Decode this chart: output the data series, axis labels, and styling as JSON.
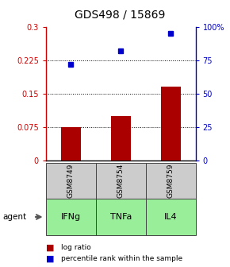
{
  "title": "GDS498 / 15869",
  "samples": [
    "GSM8749",
    "GSM8754",
    "GSM8759"
  ],
  "agents": [
    "IFNg",
    "TNFa",
    "IL4"
  ],
  "log_ratios": [
    0.075,
    0.1,
    0.165
  ],
  "percentile_ranks": [
    0.72,
    0.82,
    0.95
  ],
  "left_ylim": [
    0,
    0.3
  ],
  "right_ylim": [
    0,
    1.0
  ],
  "left_yticks": [
    0,
    0.075,
    0.15,
    0.225,
    0.3
  ],
  "left_yticklabels": [
    "0",
    "0.075",
    "0.15",
    "0.225",
    "0.3"
  ],
  "right_yticks": [
    0,
    0.25,
    0.5,
    0.75,
    1.0
  ],
  "right_yticklabels": [
    "0",
    "25",
    "50",
    "75",
    "100%"
  ],
  "hlines": [
    0.075,
    0.15,
    0.225
  ],
  "bar_color": "#aa0000",
  "dot_color": "#0000cc",
  "sample_box_color": "#cccccc",
  "agent_box_color": "#99ee99",
  "agent_box_border": "#444444",
  "legend_bar_label": "log ratio",
  "legend_dot_label": "percentile rank within the sample",
  "left_axis_color": "#cc0000",
  "right_axis_color": "#0000cc",
  "bar_width": 0.4
}
